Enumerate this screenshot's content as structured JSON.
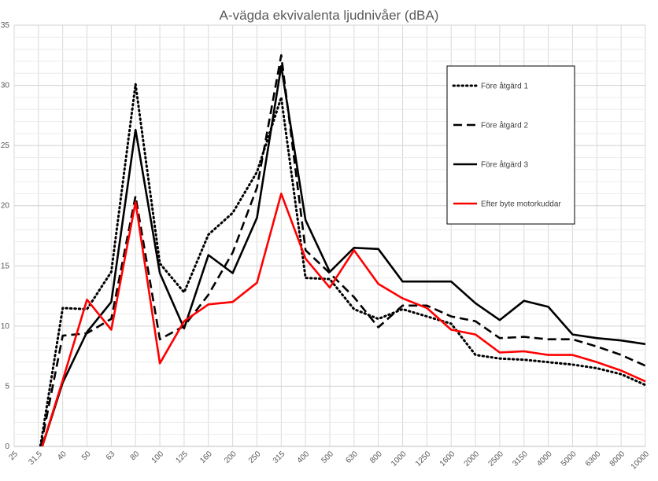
{
  "chart_data": {
    "type": "line",
    "title": "A-vägda ekvivalenta ljudnivåer (dBA)",
    "xlabel": "",
    "ylabel": "",
    "ylim": [
      0,
      35
    ],
    "yticks": [
      0,
      5,
      10,
      15,
      20,
      25,
      30,
      35
    ],
    "grid": true,
    "legend_position": "right",
    "categories": [
      "25",
      "31,5",
      "40",
      "50",
      "63",
      "80",
      "100",
      "125",
      "160",
      "200",
      "250",
      "315",
      "400",
      "500",
      "630",
      "800",
      "1000",
      "1250",
      "1600",
      "2000",
      "2500",
      "3150",
      "4000",
      "5000",
      "6300",
      "8000",
      "10000"
    ],
    "series": [
      {
        "name": "Före åtgärd 1",
        "color": "#000000",
        "style": "dotted",
        "values": [
          null,
          -1,
          11.5,
          11.4,
          14.5,
          30.1,
          15.2,
          12.8,
          17.6,
          19.4,
          22.8,
          29.0,
          14.0,
          13.9,
          11.4,
          10.6,
          11.4,
          10.8,
          10.2,
          7.6,
          7.3,
          7.2,
          7.0,
          6.8,
          6.5,
          6.0,
          5.1
        ]
      },
      {
        "name": "Före åtgärd 2",
        "color": "#000000",
        "style": "dashed",
        "values": [
          null,
          -1,
          9.2,
          9.4,
          10.6,
          20.8,
          8.9,
          10.0,
          12.6,
          16.1,
          21.5,
          32.5,
          16.3,
          14.4,
          12.4,
          9.9,
          11.7,
          11.7,
          10.8,
          10.4,
          9.0,
          9.1,
          8.9,
          8.9,
          8.3,
          7.6,
          6.7
        ]
      },
      {
        "name": "Före åtgärd 3",
        "color": "#000000",
        "style": "solid",
        "values": [
          null,
          -1,
          5.3,
          9.5,
          12.0,
          26.3,
          14.4,
          9.8,
          15.9,
          14.4,
          19.0,
          31.6,
          18.8,
          14.5,
          16.5,
          16.4,
          13.7,
          13.7,
          13.7,
          11.9,
          10.5,
          12.1,
          11.6,
          9.3,
          9.0,
          8.8,
          8.5
        ]
      },
      {
        "name": "Efter byte motorkuddar",
        "color": "#ff0000",
        "style": "solid",
        "values": [
          null,
          -1,
          5.5,
          12.2,
          9.7,
          20.3,
          6.9,
          10.4,
          11.8,
          12.0,
          13.6,
          21.0,
          15.6,
          13.2,
          16.3,
          13.5,
          12.3,
          11.5,
          9.7,
          9.3,
          7.8,
          7.9,
          7.6,
          7.6,
          7.0,
          6.3,
          5.4
        ]
      }
    ]
  }
}
